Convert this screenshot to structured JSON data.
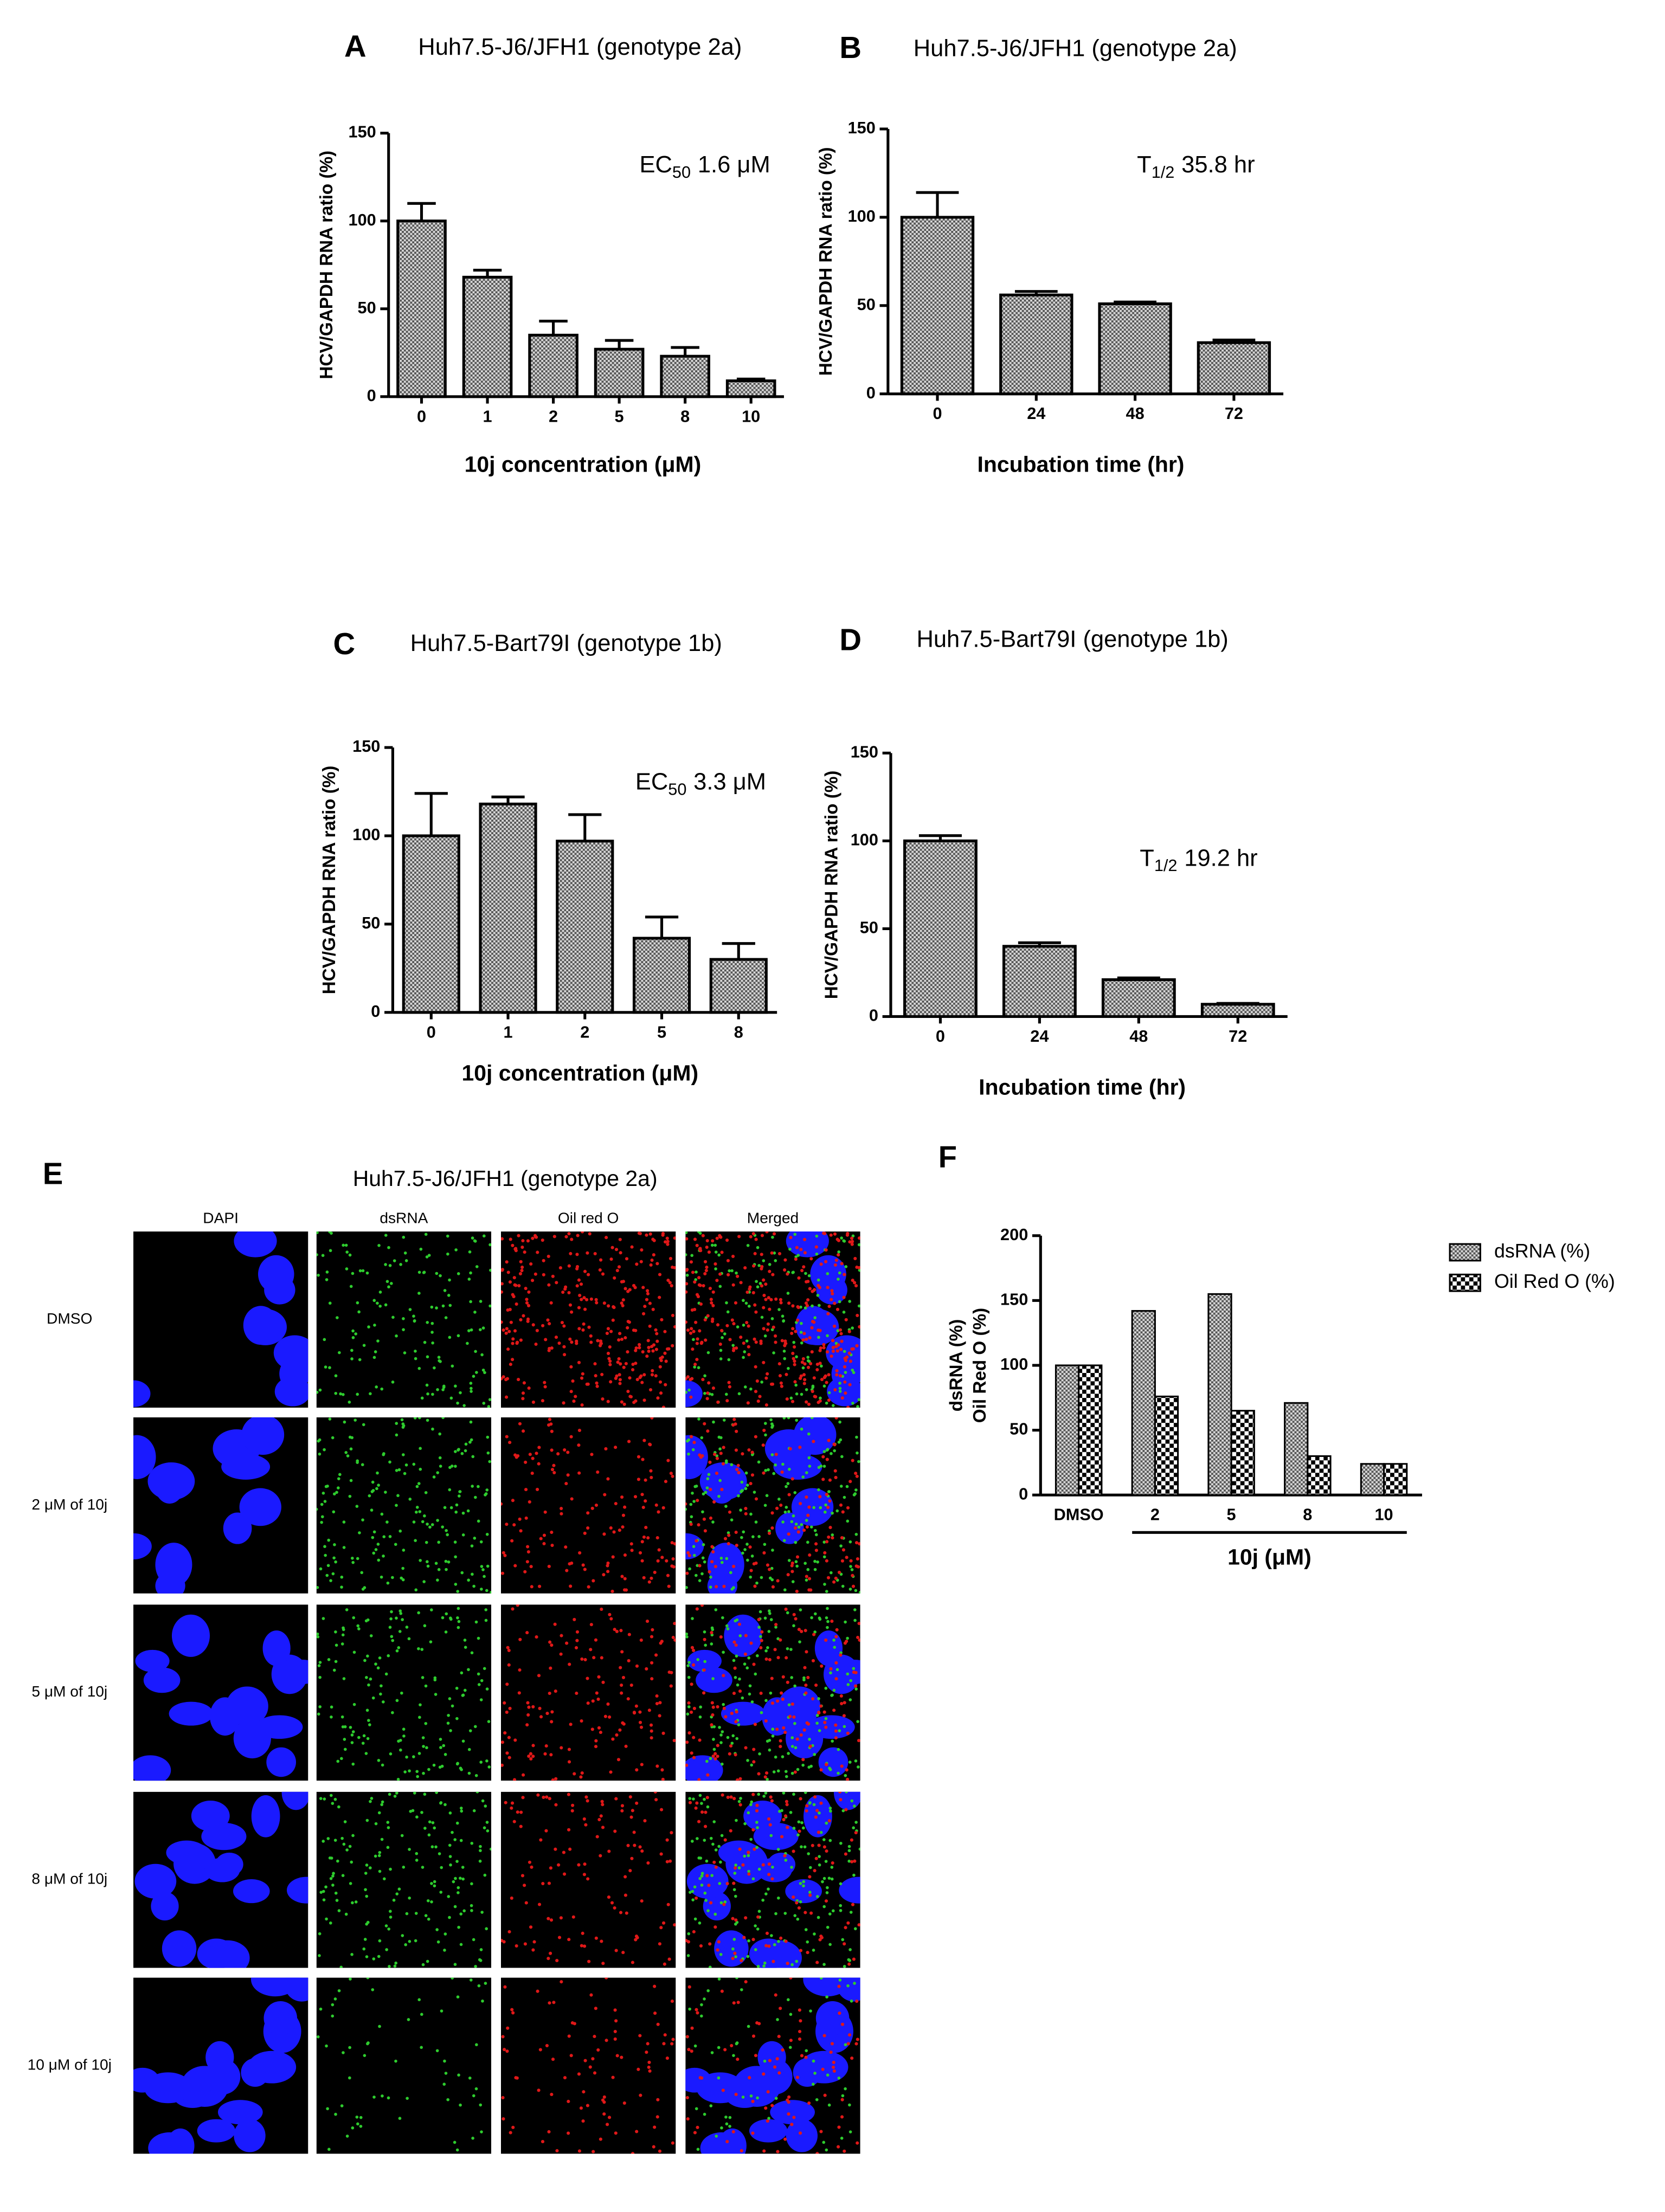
{
  "chart_data": [
    {
      "type": "bar",
      "panel": "A",
      "title": "Huh7.5-J6/JFH1 (genotype 2a)",
      "x_label": "10j concentration (μM)",
      "y_label": "HCV/GAPDH RNA ratio (%)",
      "annotation": {
        "main": "EC",
        "sub": "50",
        "value": "1.6 μM"
      },
      "categories": [
        "0",
        "1",
        "2",
        "5",
        "8",
        "10"
      ],
      "values": [
        100,
        68,
        35,
        27,
        23,
        9
      ],
      "errors": [
        10,
        4,
        8,
        5,
        5,
        1
      ],
      "color": "#555555",
      "fill_pattern": "crosshatch",
      "ylim": [
        0,
        150
      ],
      "yticks": [
        0,
        50,
        100,
        150
      ]
    },
    {
      "type": "bar",
      "panel": "B",
      "title": "Huh7.5-J6/JFH1 (genotype 2a)",
      "x_label": "Incubation time (hr)",
      "y_label": "HCV/GAPDH RNA ratio (%)",
      "annotation": {
        "main": "T",
        "sub": "1/2",
        "value": "35.8 hr"
      },
      "categories": [
        "0",
        "24",
        "48",
        "72"
      ],
      "values": [
        100,
        56,
        51,
        29
      ],
      "errors": [
        14,
        2,
        1,
        1.5
      ],
      "color": "#555555",
      "fill_pattern": "crosshatch",
      "ylim": [
        0,
        150
      ],
      "yticks": [
        0,
        50,
        100,
        150
      ]
    },
    {
      "type": "bar",
      "panel": "C",
      "title": "Huh7.5-Bart79I (genotype 1b)",
      "x_label": "10j concentration (μM)",
      "y_label": "HCV/GAPDH RNA ratio (%)",
      "annotation": {
        "main": "EC",
        "sub": "50",
        "value": "3.3 μM"
      },
      "categories": [
        "0",
        "1",
        "2",
        "5",
        "8"
      ],
      "values": [
        100,
        118,
        97,
        42,
        30
      ],
      "errors": [
        24,
        4,
        15,
        12,
        9
      ],
      "color": "#555555",
      "fill_pattern": "crosshatch",
      "ylim": [
        0,
        150
      ],
      "yticks": [
        0,
        50,
        100,
        150
      ]
    },
    {
      "type": "bar",
      "panel": "D",
      "title": "Huh7.5-Bart79I (genotype 1b)",
      "x_label": "Incubation time (hr)",
      "y_label": "HCV/GAPDH RNA ratio (%)",
      "annotation": {
        "main": "T",
        "sub": "1/2",
        "value": "19.2 hr"
      },
      "categories": [
        "0",
        "24",
        "48",
        "72"
      ],
      "values": [
        100,
        40,
        21,
        7
      ],
      "errors": [
        3,
        2,
        1,
        0.5
      ],
      "color": "#555555",
      "fill_pattern": "crosshatch",
      "ylim": [
        0,
        150
      ],
      "yticks": [
        0,
        50,
        100,
        150
      ]
    },
    {
      "type": "grouped_bar",
      "panel": "F",
      "x_label": "10j (μM)",
      "y_label": [
        "dsRNA (%)",
        "Oil Red O (%)"
      ],
      "categories": [
        "DMSO",
        "2",
        "5",
        "8",
        "10"
      ],
      "series": [
        {
          "name": "dsRNA (%)",
          "color": "#555555",
          "fill_pattern": "crosshatch",
          "values": [
            100,
            142,
            155,
            71,
            24
          ]
        },
        {
          "name": "Oil Red O (%)",
          "color": "#000000",
          "fill_pattern": "checker",
          "values": [
            100,
            76,
            65,
            30,
            24
          ]
        }
      ],
      "ylim": [
        0,
        200
      ],
      "yticks": [
        0,
        50,
        100,
        150,
        200
      ],
      "legend": "right"
    }
  ],
  "image_panel": {
    "panel": "E",
    "title": "Huh7.5-J6/JFH1 (genotype 2a)",
    "columns": [
      "DAPI",
      "dsRNA",
      "Oil red O",
      "Merged"
    ],
    "rows": [
      "DMSO",
      "2 μM of 10j",
      "5 μM of 10j",
      "8 μM of 10j",
      "10 μM of 10j"
    ]
  }
}
